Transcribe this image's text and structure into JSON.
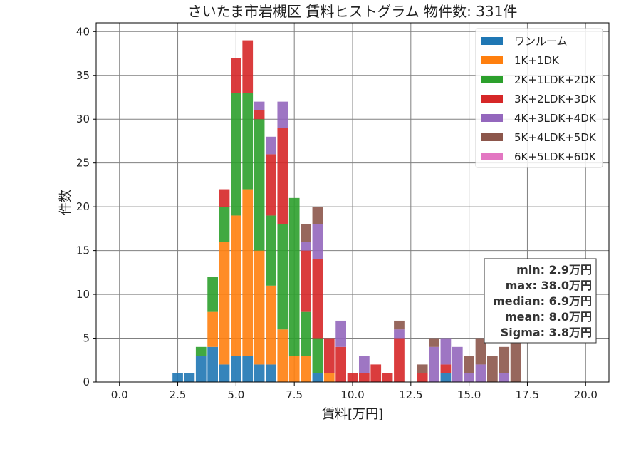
{
  "chart_data": {
    "type": "bar",
    "stacked": true,
    "title": "さいたま市岩槻区 賃料ヒストグラム  物件数: 331件",
    "xlabel": "賃料[万円]",
    "ylabel": "件数",
    "xlim": [
      -1.0,
      21.0
    ],
    "ylim": [
      0,
      41
    ],
    "xticks": [
      0.0,
      2.5,
      5.0,
      7.5,
      10.0,
      12.5,
      15.0,
      17.5,
      20.0
    ],
    "xtick_labels": [
      "0.0",
      "2.5",
      "5.0",
      "7.5",
      "10.0",
      "12.5",
      "15.0",
      "17.5",
      "20.0"
    ],
    "yticks": [
      0,
      5,
      10,
      15,
      20,
      25,
      30,
      35,
      40
    ],
    "ytick_labels": [
      "0",
      "5",
      "10",
      "15",
      "20",
      "25",
      "30",
      "35",
      "40"
    ],
    "grid": true,
    "legend_position": "top-right",
    "bin_width": 0.5,
    "x": [
      2.5,
      3.0,
      3.5,
      4.0,
      4.5,
      5.0,
      5.5,
      6.0,
      6.5,
      7.0,
      7.5,
      8.0,
      8.5,
      9.0,
      9.5,
      10.0,
      10.5,
      11.0,
      11.5,
      12.0,
      13.0,
      13.5,
      14.0,
      14.5,
      15.0,
      15.5,
      16.0,
      16.5,
      17.0
    ],
    "series": [
      {
        "name": "ワンルーム",
        "color": "#1f77b4",
        "values": [
          1,
          1,
          3,
          4,
          2,
          3,
          3,
          2,
          2,
          0,
          0,
          0,
          1,
          0,
          0,
          0,
          0,
          0,
          0,
          0,
          0,
          0,
          1,
          0,
          0,
          0,
          0,
          0,
          0
        ]
      },
      {
        "name": "1K+1DK",
        "color": "#ff7f0e",
        "values": [
          0,
          0,
          0,
          4,
          14,
          16,
          19,
          13,
          9,
          6,
          3,
          3,
          0,
          1,
          0,
          0,
          0,
          0,
          0,
          0,
          0,
          0,
          0,
          0,
          0,
          0,
          0,
          0,
          0
        ]
      },
      {
        "name": "2K+1LDK+2DK",
        "color": "#2ca02c",
        "values": [
          0,
          0,
          1,
          4,
          4,
          14,
          11,
          15,
          8,
          12,
          18,
          5,
          4,
          0,
          0,
          0,
          0,
          0,
          0,
          0,
          0,
          0,
          0,
          0,
          0,
          0,
          0,
          0,
          0
        ]
      },
      {
        "name": "3K+2LDK+3DK",
        "color": "#d62728",
        "values": [
          0,
          0,
          0,
          0,
          2,
          4,
          6,
          1,
          7,
          11,
          0,
          7,
          9,
          4,
          4,
          1,
          1,
          2,
          1,
          5,
          1,
          0,
          1,
          0,
          0,
          0,
          0,
          0,
          0
        ]
      },
      {
        "name": "4K+3LDK+4DK",
        "color": "#9467bd",
        "values": [
          0,
          0,
          0,
          0,
          0,
          0,
          0,
          1,
          2,
          3,
          0,
          1,
          4,
          0,
          3,
          0,
          2,
          0,
          0,
          1,
          0,
          4,
          3,
          4,
          1,
          2,
          0,
          1,
          0
        ]
      },
      {
        "name": "5K+4LDK+5DK",
        "color": "#8c564b",
        "values": [
          0,
          0,
          0,
          0,
          0,
          0,
          0,
          0,
          0,
          0,
          0,
          2,
          2,
          0,
          0,
          0,
          0,
          0,
          0,
          1,
          1,
          1,
          0,
          0,
          2,
          3,
          3,
          3,
          5
        ]
      },
      {
        "name": "6K+5LDK+6DK",
        "color": "#e377c2",
        "values": [
          0,
          0,
          0,
          0,
          0,
          0,
          0,
          0,
          0,
          0,
          0,
          0,
          0,
          0,
          0,
          0,
          0,
          0,
          0,
          0,
          0,
          0,
          0,
          0,
          0,
          0,
          0,
          0,
          0
        ]
      }
    ],
    "stats_box": [
      "min: 2.9万円",
      "max: 38.0万円",
      "median: 6.9万円",
      "mean: 8.0万円",
      "Sigma: 3.8万円"
    ]
  }
}
